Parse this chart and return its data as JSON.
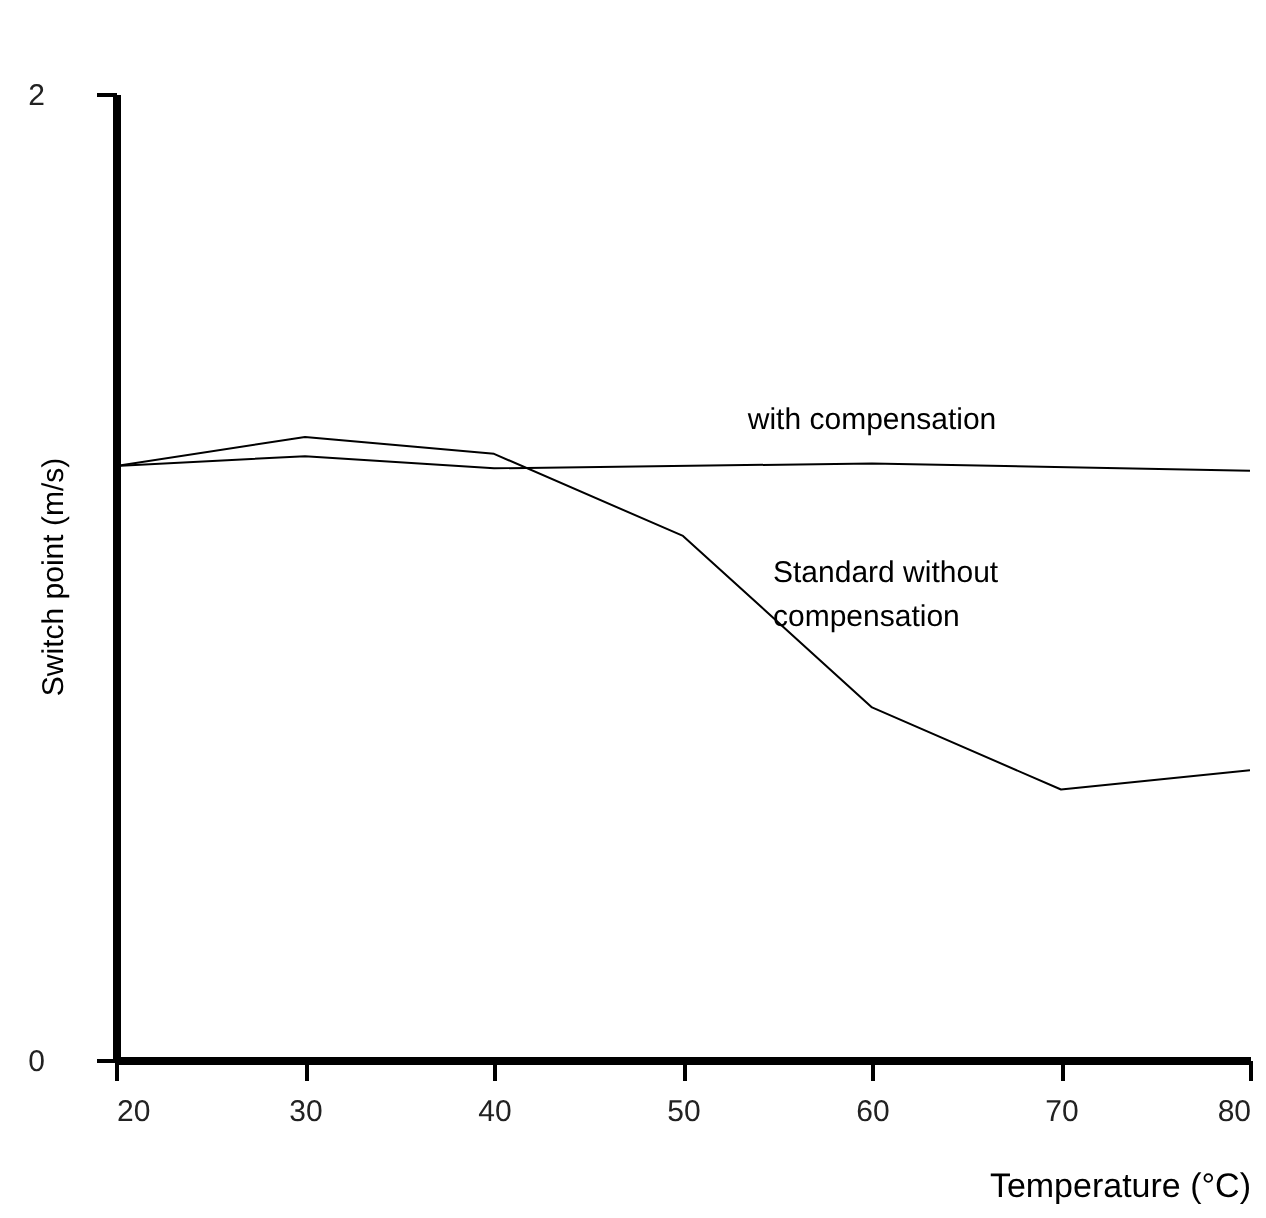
{
  "chart_data": {
    "type": "line",
    "xlabel": "Temperature (°C)",
    "ylabel": "Switch point (m/s)",
    "x": [
      20,
      30,
      40,
      50,
      60,
      70,
      80
    ],
    "series": [
      {
        "name": "with compensation",
        "color": "#000000",
        "x": [
          20,
          30,
          40,
          60,
          80
        ],
        "values": [
          1.23,
          1.25,
          1.225,
          1.235,
          1.22
        ]
      },
      {
        "name": "Standard without compensation",
        "color": "#000000",
        "values": [
          1.23,
          1.29,
          1.255,
          1.085,
          0.73,
          0.56,
          0.6
        ]
      }
    ],
    "xlim": [
      20,
      80
    ],
    "xticks": [
      20,
      30,
      40,
      50,
      60,
      70,
      80
    ],
    "ylim": [
      0,
      2
    ],
    "yticks": [
      {
        "value": 0,
        "label": "0"
      },
      {
        "value": 2,
        "label": "2"
      }
    ],
    "grid": false,
    "marker": "none",
    "line_style": "solid"
  }
}
